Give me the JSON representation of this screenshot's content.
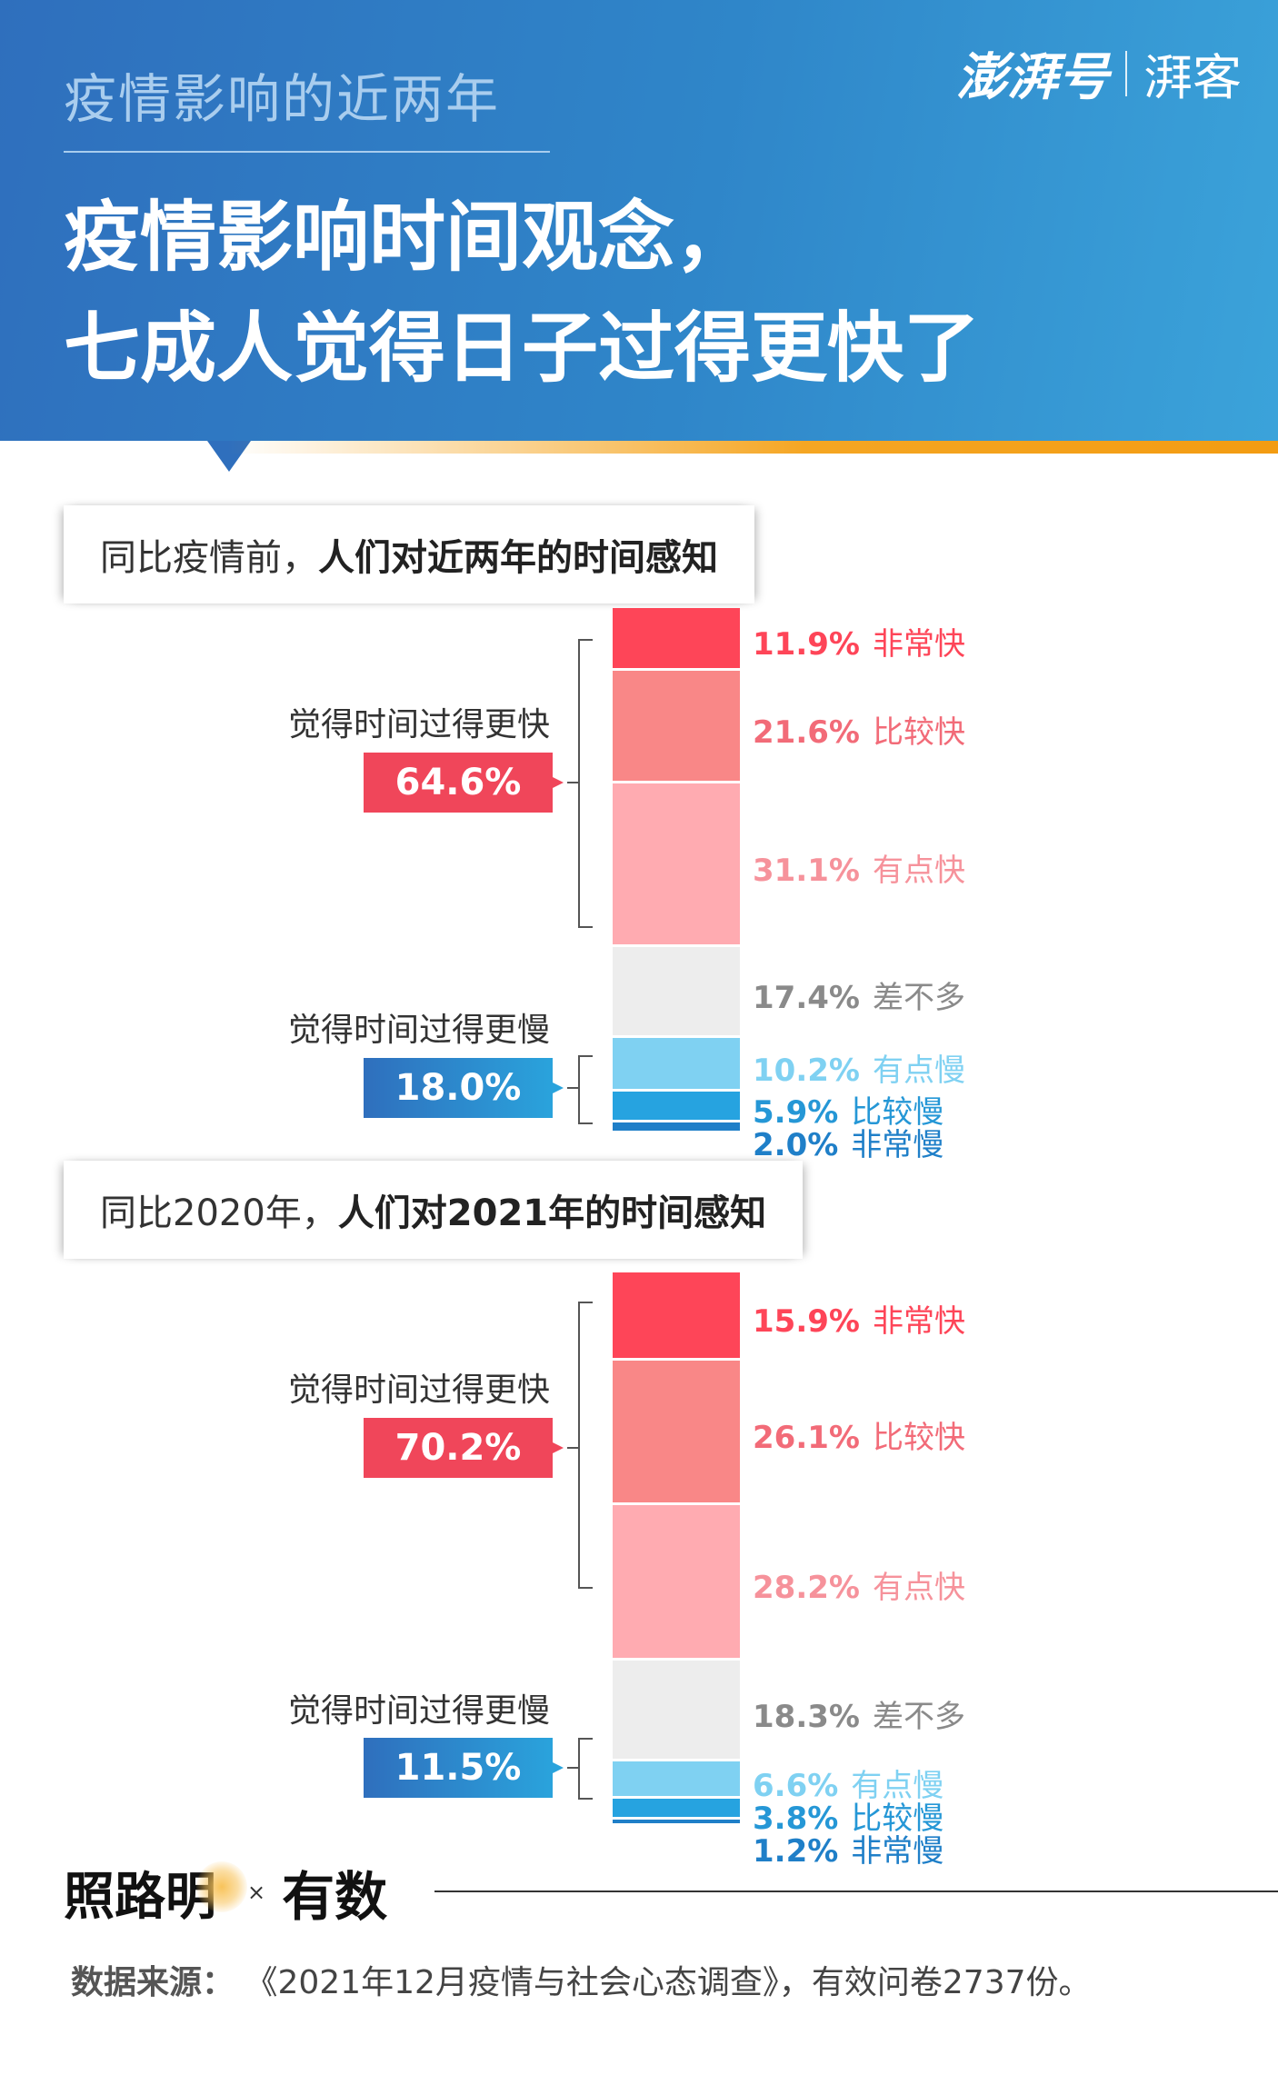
{
  "header": {
    "kicker": "疫情影响的近两年",
    "title_line1": "疫情影响时间观念，",
    "title_line2": "七成人觉得日子过得更快了",
    "logo_main": "澎湃号",
    "logo_sub": "湃客"
  },
  "colors": {
    "very_fast": "#fe4558",
    "fast": "#f98787",
    "slightly_fast": "#ffabb1",
    "same": "#ededed",
    "slightly_slow": "#7fd1f2",
    "slow": "#26a3e0",
    "very_slow": "#1f7fc8"
  },
  "chart_data": [
    {
      "type": "bar",
      "stacked": true,
      "title_plain": "同比疫情前，",
      "title_bold": "人们对近两年的时间感知",
      "fast_group": {
        "label": "觉得时间过得更快",
        "value_text": "64.6%"
      },
      "slow_group": {
        "label": "觉得时间过得更慢",
        "value_text": "18.0%"
      },
      "categories": [
        "非常快",
        "比较快",
        "有点快",
        "差不多",
        "有点慢",
        "比较慢",
        "非常慢"
      ],
      "values": [
        11.9,
        21.6,
        31.1,
        17.4,
        10.2,
        5.9,
        2.0
      ],
      "value_texts": [
        "11.9%",
        "21.6%",
        "31.1%",
        "17.4%",
        "10.2%",
        "5.9%",
        "2.0%"
      ]
    },
    {
      "type": "bar",
      "stacked": true,
      "title_plain": "同比2020年，",
      "title_bold": "人们对2021年的时间感知",
      "fast_group": {
        "label": "觉得时间过得更快",
        "value_text": "70.2%"
      },
      "slow_group": {
        "label": "觉得时间过得更慢",
        "value_text": "11.5%"
      },
      "categories": [
        "非常快",
        "比较快",
        "有点快",
        "差不多",
        "有点慢",
        "比较慢",
        "非常慢"
      ],
      "values": [
        15.9,
        26.1,
        28.2,
        18.3,
        6.6,
        3.8,
        1.2
      ],
      "value_texts": [
        "15.9%",
        "26.1%",
        "28.2%",
        "18.3%",
        "6.6%",
        "3.8%",
        "1.2%"
      ]
    }
  ],
  "footer": {
    "brand1": "照路明",
    "times": "×",
    "brand2": "有数",
    "source_label": "数据来源：",
    "source_text": "《2021年12月疫情与社会心态调查》，有效问卷2737份。"
  }
}
